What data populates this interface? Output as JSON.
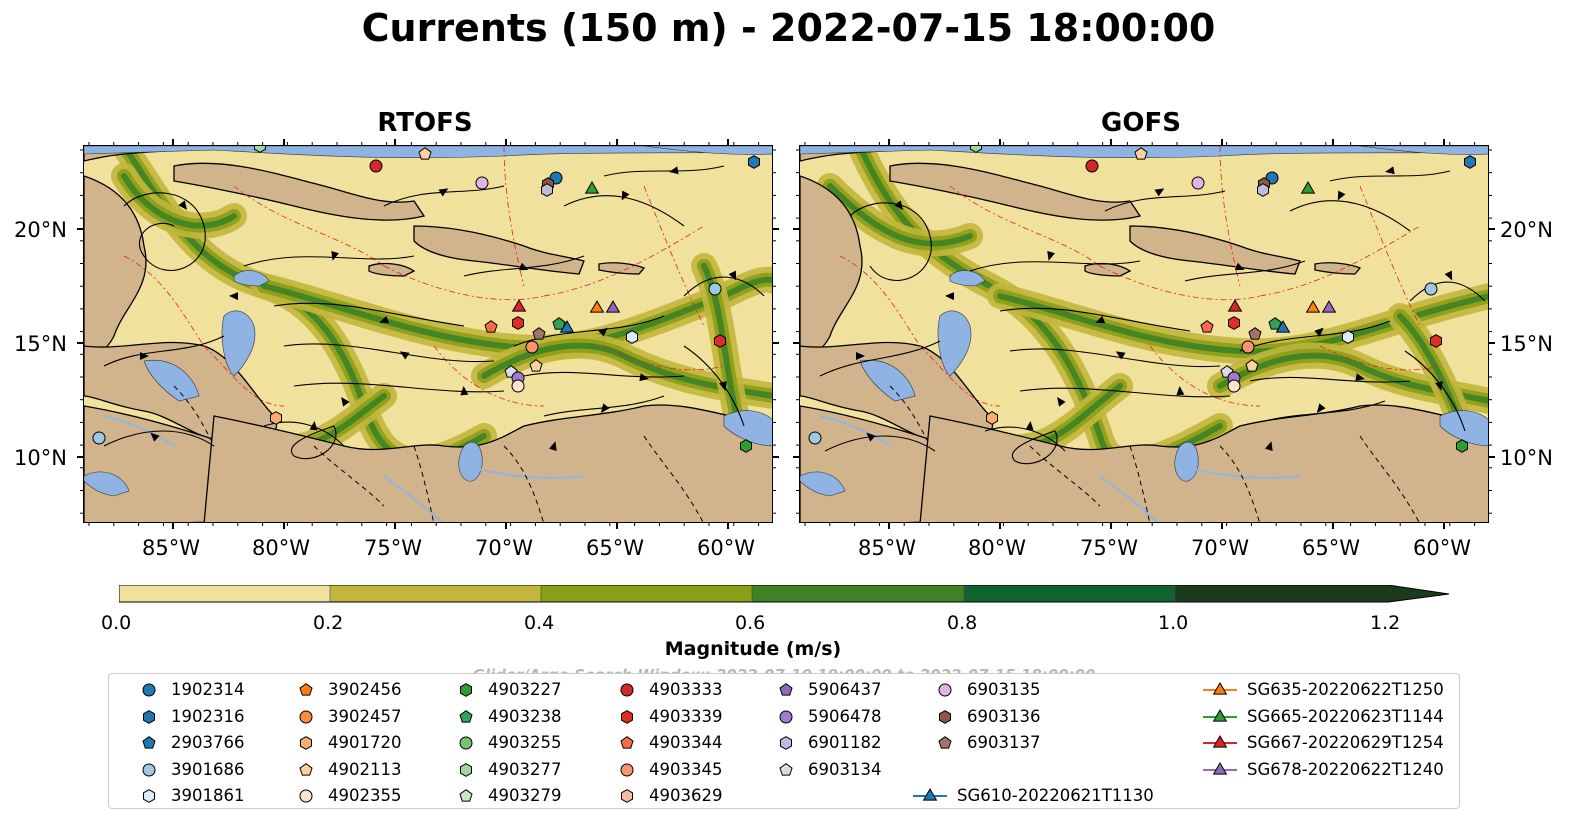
{
  "title": "Currents (150 m) - 2022-07-15 18:00:00",
  "panels": [
    {
      "name": "RTOFS"
    },
    {
      "name": "GOFS"
    }
  ],
  "axes": {
    "lon_ticks": [
      "85°W",
      "80°W",
      "75°W",
      "70°W",
      "65°W",
      "60°W"
    ],
    "lat_ticks": [
      "20°N",
      "15°N",
      "10°N"
    ]
  },
  "colorbar": {
    "label": "Magnitude (m/s)",
    "ticks": [
      "0.0",
      "0.2",
      "0.4",
      "0.6",
      "0.8",
      "1.0",
      "1.2"
    ],
    "colors": [
      "#f0e19c",
      "#c2b63c",
      "#8a9f18",
      "#3e8225",
      "#10632e",
      "#1c3a1c"
    ]
  },
  "search_window": "Glider/Argo Search Window: 2022-07-10 19:00:00 to 2022-07-15 18:00:00",
  "colors": {
    "land": "#d2b48c",
    "water": "#8fb4e3",
    "sea_low": "#f0e19c",
    "contour": "#e8201a"
  },
  "legend": [
    {
      "label": "1902314",
      "marker": "circle",
      "color": "#1f77b4"
    },
    {
      "label": "1902316",
      "marker": "hexagon",
      "color": "#1f77b4"
    },
    {
      "label": "2903766",
      "marker": "pentagon",
      "color": "#1f77b4"
    },
    {
      "label": "3901686",
      "marker": "circle",
      "color": "#9ecae1"
    },
    {
      "label": "3901861",
      "marker": "hexagon",
      "color": "#deebf7"
    },
    {
      "label": "3902456",
      "marker": "pentagon",
      "color": "#ff7f0e"
    },
    {
      "label": "3902457",
      "marker": "circle",
      "color": "#fd8d3c"
    },
    {
      "label": "4901720",
      "marker": "hexagon",
      "color": "#fdae6b"
    },
    {
      "label": "4902113",
      "marker": "pentagon",
      "color": "#fdd0a2"
    },
    {
      "label": "4902355",
      "marker": "circle",
      "color": "#fee6ce"
    },
    {
      "label": "4903227",
      "marker": "hexagon",
      "color": "#2ca02c"
    },
    {
      "label": "4903238",
      "marker": "pentagon",
      "color": "#31a354"
    },
    {
      "label": "4903255",
      "marker": "circle",
      "color": "#74c476"
    },
    {
      "label": "4903277",
      "marker": "hexagon",
      "color": "#a1d99b"
    },
    {
      "label": "4903279",
      "marker": "pentagon",
      "color": "#c7e9c0"
    },
    {
      "label": "4903333",
      "marker": "circle",
      "color": "#d62728"
    },
    {
      "label": "4903339",
      "marker": "hexagon",
      "color": "#de2d26"
    },
    {
      "label": "4903344",
      "marker": "pentagon",
      "color": "#fb6a4a"
    },
    {
      "label": "4903345",
      "marker": "circle",
      "color": "#fc9272"
    },
    {
      "label": "4903629",
      "marker": "hexagon",
      "color": "#fcbba1"
    },
    {
      "label": "5906437",
      "marker": "pentagon",
      "color": "#9467bd"
    },
    {
      "label": "5906478",
      "marker": "circle",
      "color": "#9e7bcf"
    },
    {
      "label": "6901182",
      "marker": "hexagon",
      "color": "#bcbddc"
    },
    {
      "label": "6903134",
      "marker": "pentagon",
      "color": "#dadaeb"
    },
    {
      "label": "6903135",
      "marker": "circle",
      "color": "#e5b3e8"
    },
    {
      "label": "6903136",
      "marker": "hexagon",
      "color": "#8c564b"
    },
    {
      "label": "6903137",
      "marker": "pentagon",
      "color": "#a1746a"
    },
    {
      "label": "SG610-20220621T1130",
      "marker": "triangle",
      "color": "#1f77b4"
    },
    {
      "label": "SG635-20220622T1250",
      "marker": "triangle",
      "color": "#ff7f0e"
    },
    {
      "label": "SG665-20220623T1144",
      "marker": "triangle",
      "color": "#2ca02c"
    },
    {
      "label": "SG667-20220629T1254",
      "marker": "triangle",
      "color": "#d62728"
    },
    {
      "label": "SG678-20220622T1240",
      "marker": "triangle",
      "color": "#9467bd"
    }
  ]
}
